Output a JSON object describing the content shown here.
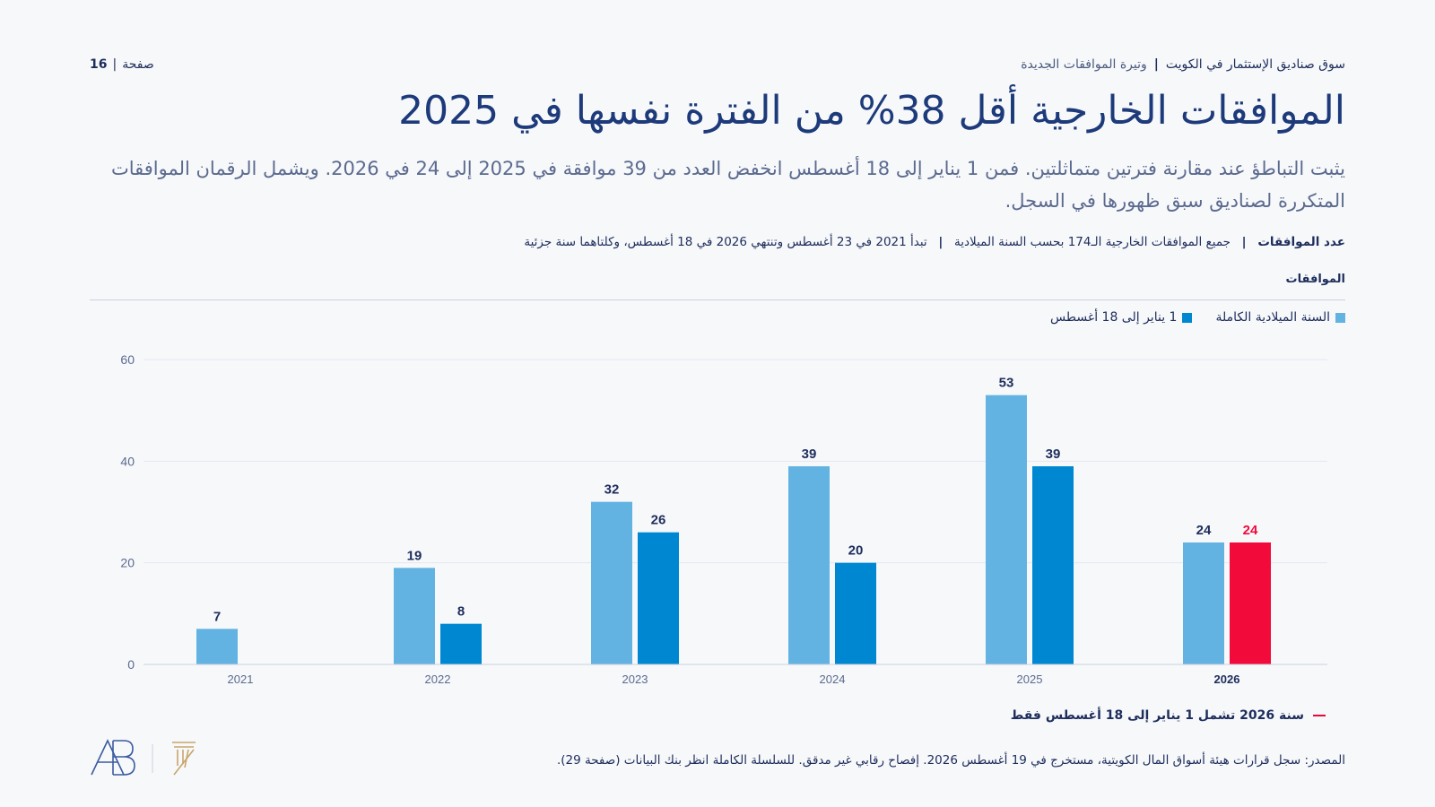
{
  "header": {
    "series_name": "سوق صناديق الإستثمار في الكويت",
    "separator": "|",
    "section": "وتيرة الموافقات الجديدة",
    "page_word": "صفحة",
    "page_sep": "|",
    "page_number": "16"
  },
  "title": "الموافقات الخارجية أقل 38% من الفترة نفسها في 2025",
  "subtitle": "يثبت التباطؤ عند مقارنة فترتين متماثلتين. فمن 1 يناير إلى 18 أغسطس انخفض العدد من 39 موافقة في 2025 إلى 24 في 2026. ويشمل الرقمان الموافقات المتكررة لصناديق سبق ظهورها في السجل.",
  "meta": {
    "label": "عدد الموافقات",
    "sep": "|",
    "part1": "جميع الموافقات الخارجية الـ174 بحسب السنة الميلادية",
    "part2": "تبدأ 2021 في 23 أغسطس وتنتهي 2026 في 18 أغسطس، وكلتاهما سنة جزئية"
  },
  "colors": {
    "full_year": "#62b3e2",
    "ytd": "#0087d2",
    "highlight": "#f20a3a",
    "grid": "#e3e8f0",
    "axis_text": "#5b6a8f",
    "label_text": "#1d2d5c"
  },
  "footer": {
    "note": "سنة 2026 تشمل 1 يناير إلى 18 أغسطس فقط",
    "source": "المصدر: سجل قرارات هيئة أسواق المال الكويتية، مستخرج في 19 أغسطس 2026. إفصاح رقابي غير مدقق. للسلسلة الكاملة انظر بنك البيانات (صفحة 29)."
  },
  "chart_data": {
    "type": "bar",
    "title": "",
    "ylabel": "الموافقات",
    "xlabel": "",
    "categories": [
      "2021",
      "2022",
      "2023",
      "2024",
      "2025",
      "2026"
    ],
    "ylim": [
      0,
      60
    ],
    "yticks": [
      0,
      20,
      40,
      60
    ],
    "grid": true,
    "legend_position": "top-right",
    "series": [
      {
        "name": "السنة الميلادية الكاملة",
        "values": [
          7,
          19,
          32,
          39,
          53,
          24
        ]
      },
      {
        "name": "1 يناير إلى 18 أغسطس",
        "values": [
          null,
          8,
          26,
          20,
          39,
          24
        ]
      }
    ],
    "highlight": {
      "series": 1,
      "category": "2026"
    }
  }
}
